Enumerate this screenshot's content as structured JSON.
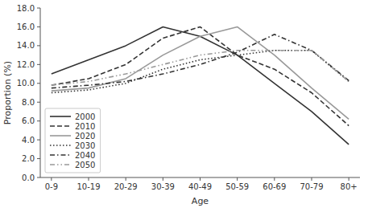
{
  "chart_data": {
    "type": "line",
    "x_label": "Age",
    "y_label": "Proportion (%)",
    "categories": [
      "0-9",
      "10-19",
      "20-29",
      "30-39",
      "40-49",
      "50-59",
      "60-69",
      "70-79",
      "80+"
    ],
    "series": [
      {
        "name": "2000",
        "color": "#333333",
        "line_style": "solid",
        "values": [
          11.0,
          12.5,
          14.0,
          16.0,
          15.0,
          13.0,
          10.0,
          7.0,
          3.5
        ]
      },
      {
        "name": "2010",
        "color": "#333333",
        "line_style": "dashed",
        "values": [
          9.8,
          10.5,
          12.0,
          14.8,
          16.0,
          13.0,
          11.5,
          9.0,
          5.5
        ]
      },
      {
        "name": "2020",
        "color": "#999999",
        "line_style": "solid",
        "values": [
          9.2,
          9.5,
          10.5,
          13.0,
          15.0,
          16.0,
          13.0,
          9.5,
          6.2
        ]
      },
      {
        "name": "2030",
        "color": "#333333",
        "line_style": "dotted",
        "values": [
          9.0,
          9.3,
          10.0,
          11.5,
          12.5,
          13.0,
          13.5,
          13.5,
          10.2
        ]
      },
      {
        "name": "2040",
        "color": "#333333",
        "line_style": "dashdot",
        "values": [
          9.5,
          9.8,
          10.2,
          11.0,
          12.0,
          13.3,
          15.2,
          13.5,
          10.3
        ]
      },
      {
        "name": "2050",
        "color": "#999999",
        "line_style": "dashdotdot",
        "values": [
          9.8,
          10.2,
          11.0,
          12.0,
          13.0,
          13.5,
          13.5,
          13.5,
          10.2
        ]
      }
    ],
    "ylim": [
      0,
      18.0
    ],
    "yticks": [
      {
        "value": 0,
        "label": "0.0"
      },
      {
        "value": 2.0,
        "label": "2.0"
      },
      {
        "value": 4.0,
        "label": "4.0"
      },
      {
        "value": 6.0,
        "label": "6.0"
      },
      {
        "value": 8.0,
        "label": "8.0"
      },
      {
        "value": 10.0,
        "label": "10.0"
      },
      {
        "value": 12.0,
        "label": "12.0"
      },
      {
        "value": 14.0,
        "label": "14.0"
      },
      {
        "value": 16.0,
        "label": "16.0"
      },
      {
        "value": 18.0,
        "label": "18.0"
      }
    ],
    "grid": false,
    "legend": "lower left"
  }
}
